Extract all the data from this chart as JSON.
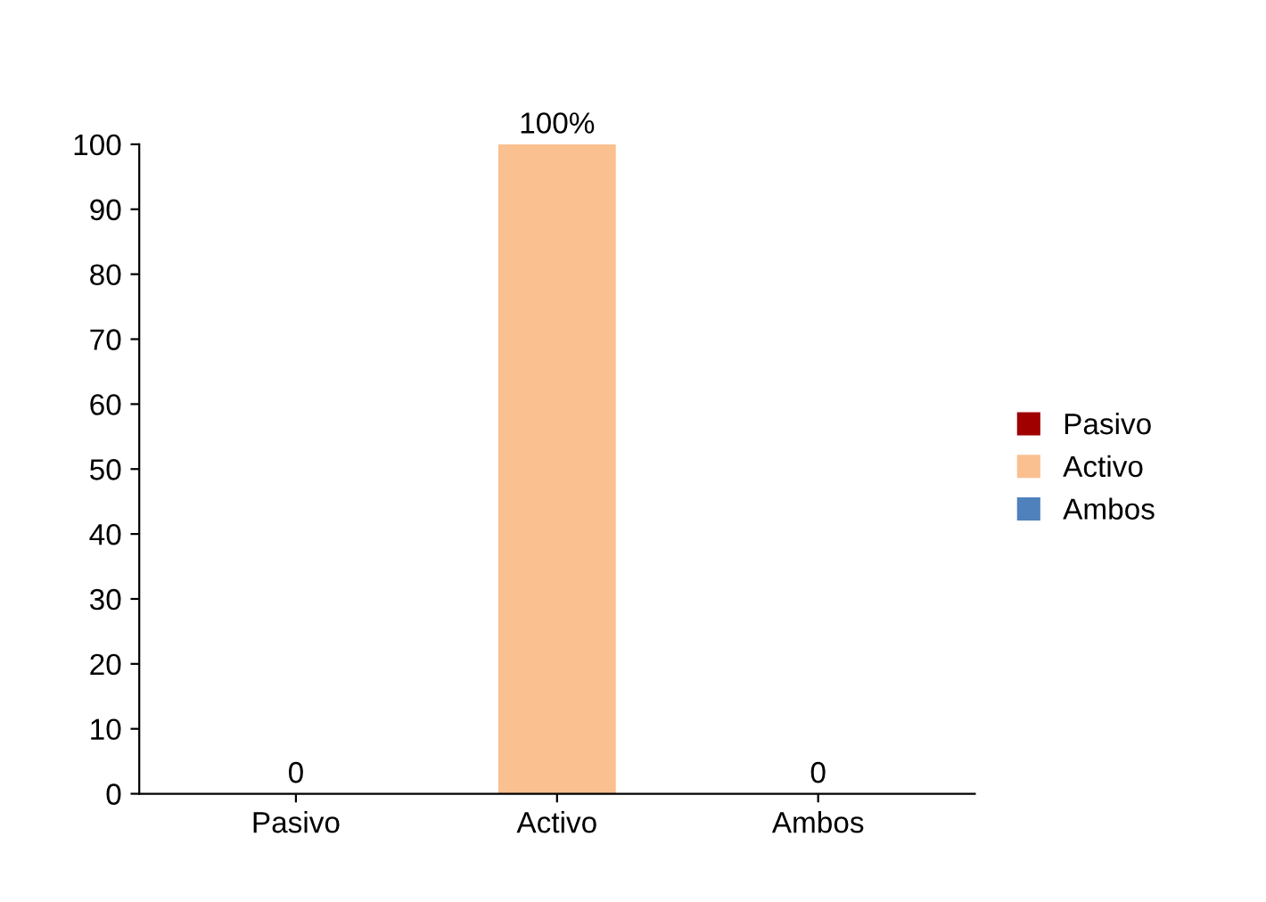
{
  "chart_data": {
    "type": "bar",
    "categories": [
      "Pasivo",
      "Activo",
      "Ambos"
    ],
    "series": [
      {
        "name": "Pasivo",
        "color": "#a00000",
        "values": [
          0,
          null,
          null
        ],
        "value_labels": [
          "0",
          null,
          null
        ]
      },
      {
        "name": "Activo",
        "color": "#fac090",
        "values": [
          null,
          100,
          null
        ],
        "value_labels": [
          null,
          "100%",
          null
        ]
      },
      {
        "name": "Ambos",
        "color": "#4f81bd",
        "values": [
          null,
          null,
          0
        ],
        "value_labels": [
          null,
          null,
          "0"
        ]
      }
    ],
    "ylim": [
      0,
      100
    ],
    "yticks": [
      0,
      10,
      20,
      30,
      40,
      50,
      60,
      70,
      80,
      90,
      100
    ],
    "grid": false,
    "legend": "right"
  }
}
